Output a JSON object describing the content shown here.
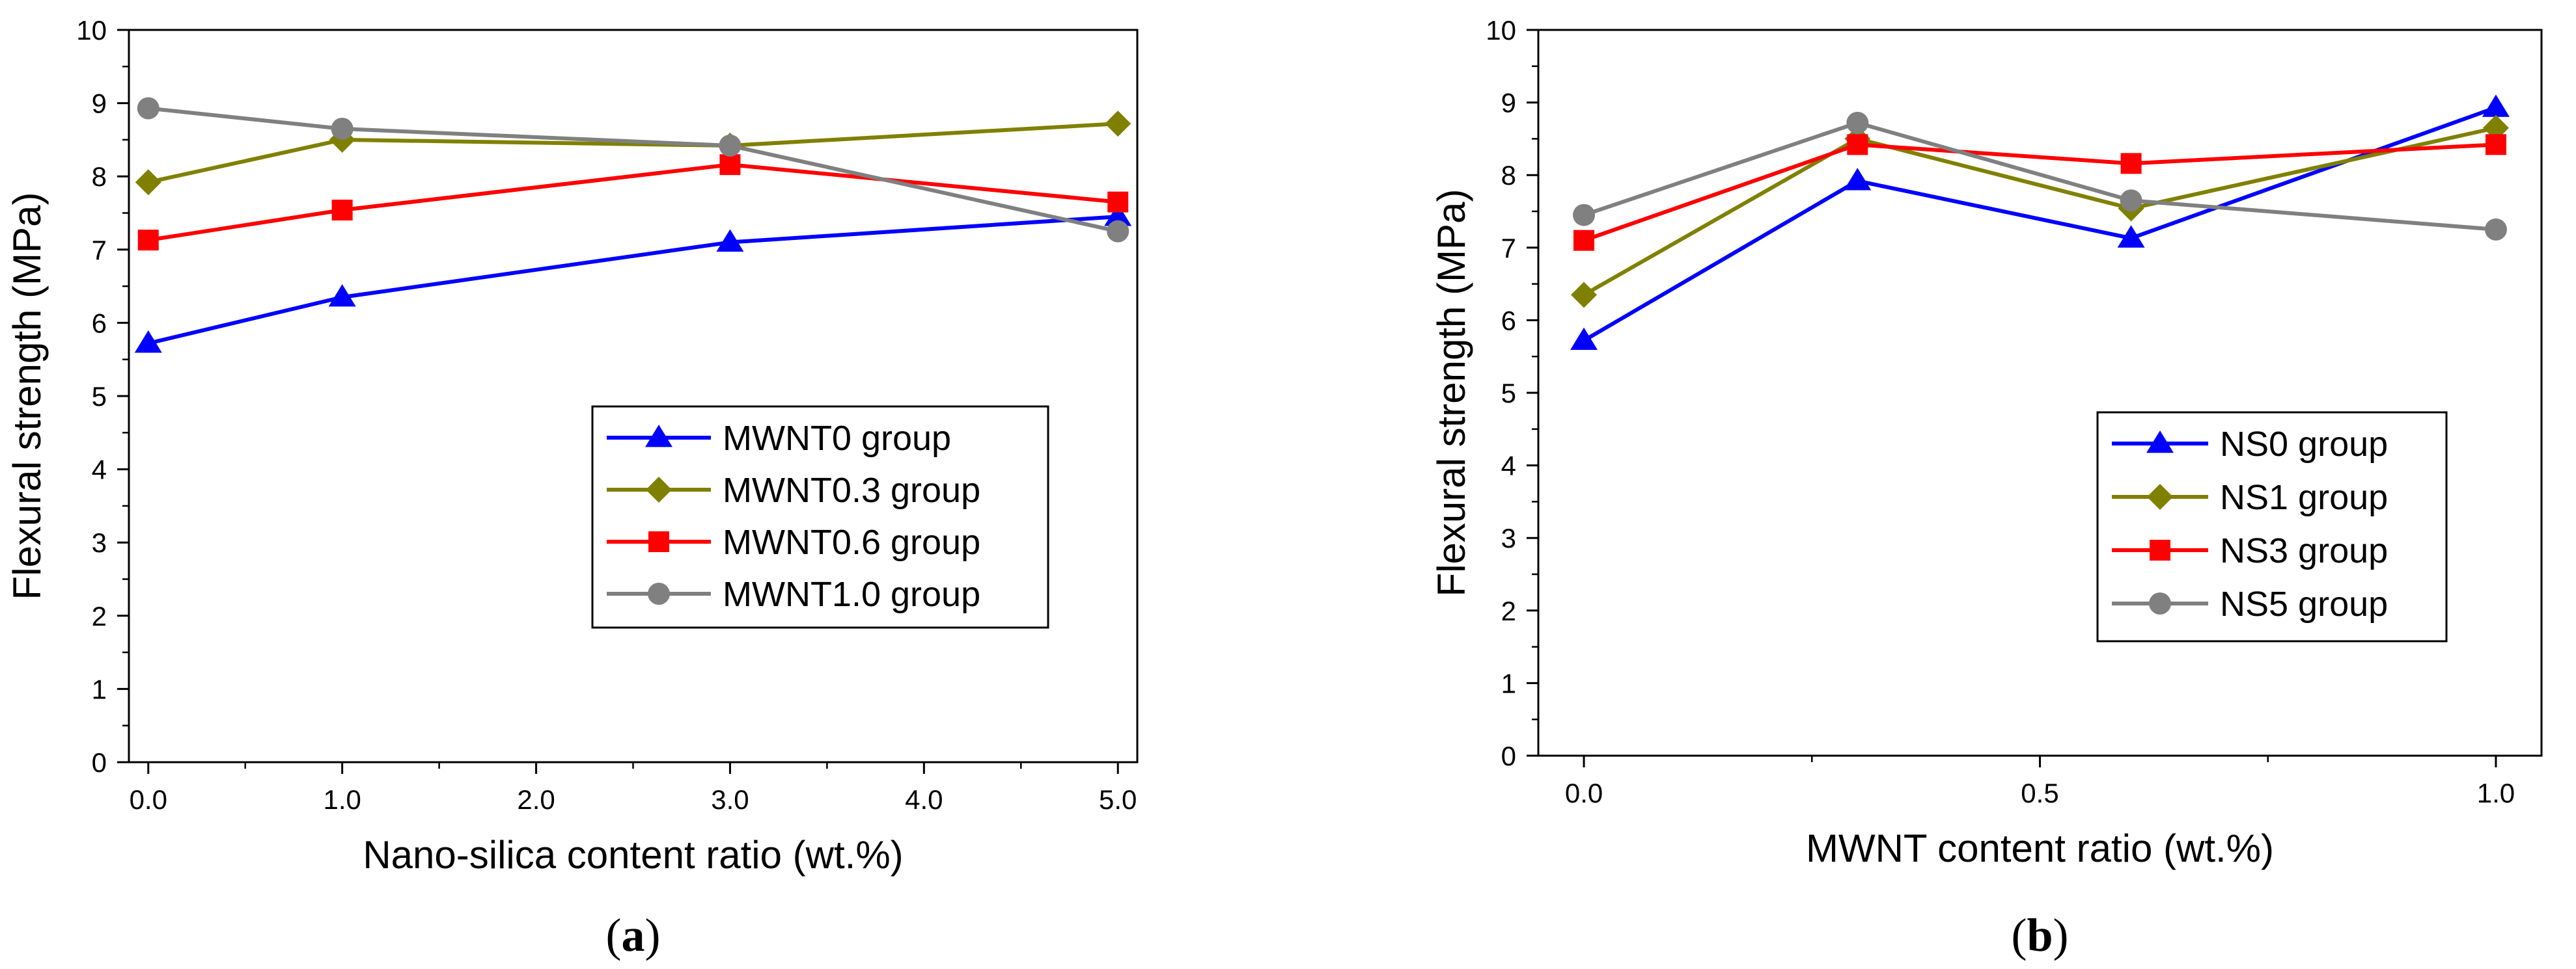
{
  "chart_data": [
    {
      "type": "line",
      "panel_label": "a",
      "xlabel": "Nano-silica content ratio (wt.%)",
      "ylabel": "Flexural strength (MPa)",
      "x_tick_labels": [
        "0.0",
        "1.0",
        "2.0",
        "3.0",
        "4.0",
        "5.0"
      ],
      "x_tick_values": [
        0,
        1,
        2,
        3,
        4,
        5
      ],
      "y_tick_labels": [
        "0",
        "1",
        "2",
        "3",
        "4",
        "5",
        "6",
        "7",
        "8",
        "9",
        "10"
      ],
      "ylim": [
        0,
        10
      ],
      "xlim": [
        -0.1,
        5.1
      ],
      "legend_position": "center-right",
      "series": [
        {
          "name": "MWNT0 group",
          "color": "#0000ff",
          "marker": "triangle",
          "x": [
            0,
            1,
            3,
            5
          ],
          "values": [
            5.72,
            6.35,
            7.1,
            7.45
          ]
        },
        {
          "name": "MWNT0.3 group",
          "color": "#808000",
          "marker": "diamond",
          "x": [
            0,
            1,
            3,
            5
          ],
          "values": [
            7.92,
            8.5,
            8.42,
            8.72
          ]
        },
        {
          "name": "MWNT0.6 group",
          "color": "#ff0000",
          "marker": "square",
          "x": [
            0,
            1,
            3,
            5
          ],
          "values": [
            7.13,
            7.54,
            8.16,
            7.65
          ]
        },
        {
          "name": "MWNT1.0 group",
          "color": "#808080",
          "marker": "circle",
          "x": [
            0,
            1,
            3,
            5
          ],
          "values": [
            8.93,
            8.65,
            8.42,
            7.25
          ]
        }
      ]
    },
    {
      "type": "line",
      "panel_label": "b",
      "xlabel": "MWNT content ratio (wt.%)",
      "ylabel": "Flexural strength (MPa)",
      "x_tick_labels": [
        "0.0",
        "0.5",
        "1.0"
      ],
      "x_tick_values": [
        0,
        0.5,
        1.0
      ],
      "y_tick_labels": [
        "0",
        "1",
        "2",
        "3",
        "4",
        "5",
        "6",
        "7",
        "8",
        "9",
        "10"
      ],
      "ylim": [
        0,
        10
      ],
      "xlim": [
        -0.05,
        1.05
      ],
      "legend_position": "bottom-right",
      "series": [
        {
          "name": "NS0 group",
          "color": "#0000ff",
          "marker": "triangle",
          "x": [
            0,
            0.3,
            0.6,
            1.0
          ],
          "values": [
            5.72,
            7.92,
            7.13,
            8.93
          ]
        },
        {
          "name": "NS1 group",
          "color": "#808000",
          "marker": "diamond",
          "x": [
            0,
            0.3,
            0.6,
            1.0
          ],
          "values": [
            6.35,
            8.5,
            7.54,
            8.65
          ]
        },
        {
          "name": "NS3 group",
          "color": "#ff0000",
          "marker": "square",
          "x": [
            0,
            0.3,
            0.6,
            1.0
          ],
          "values": [
            7.1,
            8.42,
            8.16,
            8.42
          ]
        },
        {
          "name": "NS5 group",
          "color": "#808080",
          "marker": "circle",
          "x": [
            0,
            0.3,
            0.6,
            1.0
          ],
          "values": [
            7.45,
            8.72,
            7.65,
            7.25
          ]
        }
      ]
    }
  ]
}
